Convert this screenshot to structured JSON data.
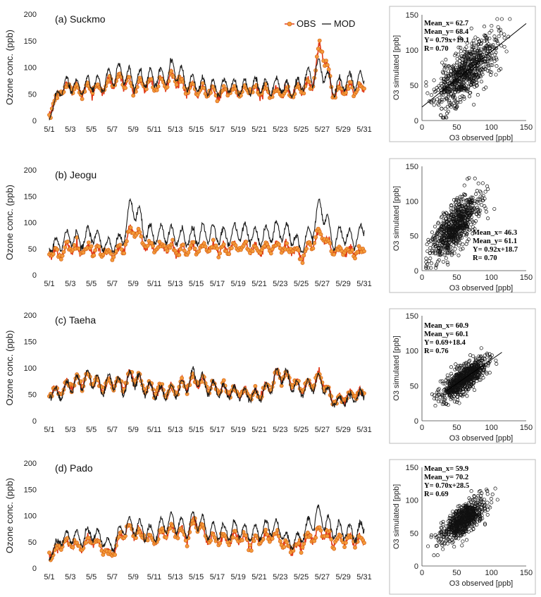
{
  "colors": {
    "obs_line": "#e23a1a",
    "obs_marker": "#f39a3a",
    "obs_marker_edge": "#d45a10",
    "mod_line": "#1a1a1a",
    "scatter_marker": "#111111",
    "box_border": "#bbbbbb"
  },
  "legend": {
    "obs": "OBS",
    "mod": "MOD"
  },
  "chart_data": [
    {
      "type": "line",
      "panel": "a",
      "title": "(a) Suckmo",
      "ylabel": "Ozone conc. (ppb)",
      "ylim": [
        0,
        200
      ],
      "yticks": [
        0,
        50,
        100,
        150,
        200
      ],
      "xlabels": [
        "5/1",
        "5/3",
        "5/5",
        "5/7",
        "5/9",
        "5/11",
        "5/13",
        "5/15",
        "5/17",
        "5/19",
        "5/21",
        "5/23",
        "5/25",
        "5/27",
        "5/29",
        "5/31"
      ],
      "xrange_days": [
        1,
        31
      ],
      "series": [
        {
          "name": "OBS",
          "x": [
            1,
            2,
            3,
            4,
            5,
            6,
            7,
            8,
            9,
            10,
            11,
            12,
            13,
            14,
            15,
            16,
            17,
            18,
            19,
            20,
            21,
            22,
            23,
            24,
            25,
            26,
            27,
            28,
            29,
            30,
            31
          ],
          "values": [
            15,
            55,
            65,
            55,
            60,
            58,
            75,
            78,
            60,
            68,
            65,
            72,
            82,
            60,
            58,
            55,
            50,
            58,
            55,
            58,
            55,
            52,
            55,
            50,
            62,
            70,
            145,
            50,
            58,
            60,
            60
          ]
        },
        {
          "name": "MOD",
          "x": [
            1,
            2,
            3,
            4,
            5,
            6,
            7,
            8,
            9,
            10,
            11,
            12,
            13,
            14,
            15,
            16,
            17,
            18,
            19,
            20,
            21,
            22,
            23,
            24,
            25,
            26,
            27,
            28,
            29,
            30,
            31
          ],
          "values": [
            5,
            60,
            70,
            60,
            72,
            68,
            85,
            90,
            75,
            80,
            78,
            85,
            100,
            72,
            70,
            65,
            60,
            68,
            60,
            65,
            65,
            62,
            68,
            55,
            70,
            85,
            100,
            60,
            72,
            75,
            75
          ]
        }
      ]
    },
    {
      "type": "scatter",
      "panel": "a",
      "xlabel": "O3 observed [ppb]",
      "ylabel": "O3 simulated [ppb]",
      "xlim": [
        0,
        150
      ],
      "ylim": [
        0,
        150
      ],
      "xticks": [
        0,
        50,
        100,
        150
      ],
      "yticks": [
        0,
        50,
        100,
        150
      ],
      "stats": [
        "Mean_x= 62.7",
        "Mean_y= 68.4",
        "Y= 0.79x+19.1",
        "R= 0.70"
      ],
      "regression": {
        "slope": 0.79,
        "intercept": 19.1,
        "x_from": 0,
        "x_to": 150
      },
      "point_cloud": {
        "mean_x": 62.7,
        "mean_y": 68.4,
        "slope": 0.79,
        "intercept": 19.1,
        "r": 0.7,
        "sd_x": 22,
        "n": 700,
        "seed": 11
      }
    },
    {
      "type": "line",
      "panel": "b",
      "title": "(b) Jeogu",
      "ylabel": "Ozone conc. (ppb)",
      "ylim": [
        0,
        200
      ],
      "yticks": [
        0,
        50,
        100,
        150,
        200
      ],
      "xlabels": [
        "5/1",
        "5/3",
        "5/5",
        "5/7",
        "5/9",
        "5/11",
        "5/13",
        "5/15",
        "5/17",
        "5/19",
        "5/21",
        "5/23",
        "5/25",
        "5/27",
        "5/29",
        "5/31"
      ],
      "xrange_days": [
        1,
        31
      ],
      "series": [
        {
          "name": "OBS",
          "x": [
            1,
            2,
            3,
            4,
            5,
            6,
            7,
            8,
            9,
            10,
            11,
            12,
            13,
            14,
            15,
            16,
            17,
            18,
            19,
            20,
            21,
            22,
            23,
            24,
            25,
            26,
            27,
            28,
            29,
            30,
            31
          ],
          "values": [
            45,
            40,
            55,
            45,
            50,
            45,
            40,
            50,
            92,
            60,
            52,
            55,
            50,
            48,
            50,
            52,
            50,
            48,
            55,
            50,
            48,
            52,
            55,
            50,
            35,
            60,
            80,
            45,
            45,
            42,
            45
          ]
        },
        {
          "name": "MOD",
          "x": [
            1,
            2,
            3,
            4,
            5,
            6,
            7,
            8,
            9,
            10,
            11,
            12,
            13,
            14,
            15,
            16,
            17,
            18,
            19,
            20,
            21,
            22,
            23,
            24,
            25,
            26,
            27,
            28,
            29,
            30,
            31
          ],
          "values": [
            55,
            60,
            75,
            62,
            80,
            60,
            55,
            70,
            140,
            85,
            72,
            80,
            75,
            70,
            75,
            80,
            78,
            70,
            85,
            78,
            70,
            80,
            85,
            75,
            50,
            85,
            135,
            60,
            80,
            65,
            85
          ]
        }
      ]
    },
    {
      "type": "scatter",
      "panel": "b",
      "xlabel": "O3 observed [ppb]",
      "ylabel": "O3 simulated [ppb]",
      "xlim": [
        0,
        150
      ],
      "ylim": [
        0,
        150
      ],
      "xticks": [
        0,
        50,
        100,
        150
      ],
      "yticks": [
        0,
        50,
        100,
        150
      ],
      "stats": [
        "Mean_x= 46.3",
        "Mean_y= 61.1",
        "Y= 0.92x+18.7",
        "R= 0.70"
      ],
      "point_cloud": {
        "mean_x": 46.3,
        "mean_y": 61.1,
        "slope": 0.92,
        "intercept": 18.7,
        "r": 0.7,
        "sd_x": 17,
        "n": 700,
        "seed": 23
      }
    },
    {
      "type": "line",
      "panel": "c",
      "title": "(c) Taeha",
      "ylabel": "Ozone conc. (ppb)",
      "ylim": [
        0,
        200
      ],
      "yticks": [
        0,
        50,
        100,
        150,
        200
      ],
      "xlabels": [
        "5/1",
        "5/3",
        "5/5",
        "5/7",
        "5/9",
        "5/11",
        "5/13",
        "5/15",
        "5/17",
        "5/19",
        "5/21",
        "5/23",
        "5/25",
        "5/27",
        "5/29",
        "5/31"
      ],
      "xrange_days": [
        1,
        31
      ],
      "series": [
        {
          "name": "OBS",
          "x": [
            1,
            2,
            3,
            4,
            5,
            6,
            7,
            8,
            9,
            10,
            11,
            12,
            13,
            14,
            15,
            16,
            17,
            18,
            19,
            20,
            21,
            22,
            23,
            24,
            25,
            26,
            27,
            28,
            29,
            30,
            31
          ],
          "values": [
            58,
            55,
            72,
            75,
            80,
            62,
            72,
            68,
            90,
            65,
            58,
            55,
            60,
            70,
            78,
            68,
            60,
            58,
            55,
            52,
            50,
            65,
            90,
            75,
            60,
            70,
            80,
            38,
            42,
            50,
            52
          ]
        },
        {
          "name": "MOD",
          "x": [
            1,
            2,
            3,
            4,
            5,
            6,
            7,
            8,
            9,
            10,
            11,
            12,
            13,
            14,
            15,
            16,
            17,
            18,
            19,
            20,
            21,
            22,
            23,
            24,
            25,
            26,
            27,
            28,
            29,
            30,
            31
          ],
          "values": [
            55,
            50,
            68,
            72,
            82,
            60,
            78,
            62,
            85,
            62,
            55,
            52,
            58,
            68,
            85,
            65,
            58,
            55,
            52,
            48,
            48,
            62,
            92,
            72,
            58,
            68,
            75,
            35,
            40,
            45,
            48
          ]
        }
      ]
    },
    {
      "type": "scatter",
      "panel": "c",
      "xlabel": "O3 observed [ppb]",
      "ylabel": "O3 simulated [ppb]",
      "xlim": [
        0,
        150
      ],
      "ylim": [
        0,
        150
      ],
      "xticks": [
        0,
        50,
        100,
        150
      ],
      "yticks": [
        0,
        50,
        100,
        150
      ],
      "stats": [
        "Mean_x= 60.9",
        "Mean_y= 60.1",
        "Y= 0.69+18.4",
        "R= 0.76"
      ],
      "regression": {
        "slope": 0.69,
        "intercept": 18.4,
        "x_from": 35,
        "x_to": 115
      },
      "point_cloud": {
        "mean_x": 60.9,
        "mean_y": 60.1,
        "slope": 0.69,
        "intercept": 18.4,
        "r": 0.76,
        "sd_x": 16,
        "n": 700,
        "seed": 37
      }
    },
    {
      "type": "line",
      "panel": "d",
      "title": "(d) Pado",
      "ylabel": "Ozone conc. (ppb)",
      "ylim": [
        0,
        200
      ],
      "yticks": [
        0,
        50,
        100,
        150,
        200
      ],
      "xlabels": [
        "5/1",
        "5/3",
        "5/5",
        "5/7",
        "5/9",
        "5/11",
        "5/13",
        "5/15",
        "5/17",
        "5/19",
        "5/21",
        "5/23",
        "5/25",
        "5/27",
        "5/29",
        "5/31"
      ],
      "xrange_days": [
        1,
        31
      ],
      "series": [
        {
          "name": "OBS",
          "x": [
            1,
            2,
            3,
            4,
            5,
            6,
            7,
            8,
            9,
            10,
            11,
            12,
            13,
            14,
            15,
            16,
            17,
            18,
            19,
            20,
            21,
            22,
            23,
            24,
            25,
            26,
            27,
            28,
            29,
            30,
            31
          ],
          "values": [
            22,
            45,
            48,
            42,
            55,
            40,
            25,
            70,
            75,
            60,
            52,
            68,
            75,
            60,
            90,
            58,
            55,
            52,
            60,
            48,
            55,
            60,
            58,
            35,
            45,
            62,
            70,
            50,
            55,
            52,
            48
          ]
        },
        {
          "name": "MOD",
          "x": [
            1,
            2,
            3,
            4,
            5,
            6,
            7,
            8,
            9,
            10,
            11,
            12,
            13,
            14,
            15,
            16,
            17,
            18,
            19,
            20,
            21,
            22,
            23,
            24,
            25,
            26,
            27,
            28,
            29,
            30,
            31
          ],
          "values": [
            20,
            55,
            60,
            55,
            68,
            55,
            40,
            78,
            80,
            72,
            65,
            85,
            88,
            72,
            98,
            72,
            70,
            68,
            75,
            65,
            70,
            78,
            75,
            45,
            60,
            90,
            100,
            70,
            72,
            65,
            75
          ]
        }
      ]
    },
    {
      "type": "scatter",
      "panel": "d",
      "xlabel": "O3 observed [ppb]",
      "ylabel": "O3 simulated [ppb]",
      "xlim": [
        0,
        150
      ],
      "ylim": [
        0,
        150
      ],
      "xticks": [
        0,
        50,
        100,
        150
      ],
      "yticks": [
        0,
        50,
        100,
        150
      ],
      "stats": [
        "Mean_x= 59.9",
        "Mean_y= 70.2",
        "Y= 0.70x+28.5",
        "R= 0.69"
      ],
      "point_cloud": {
        "mean_x": 59.9,
        "mean_y": 70.2,
        "slope": 0.7,
        "intercept": 28.5,
        "r": 0.69,
        "sd_x": 15,
        "n": 700,
        "seed": 53
      }
    }
  ]
}
